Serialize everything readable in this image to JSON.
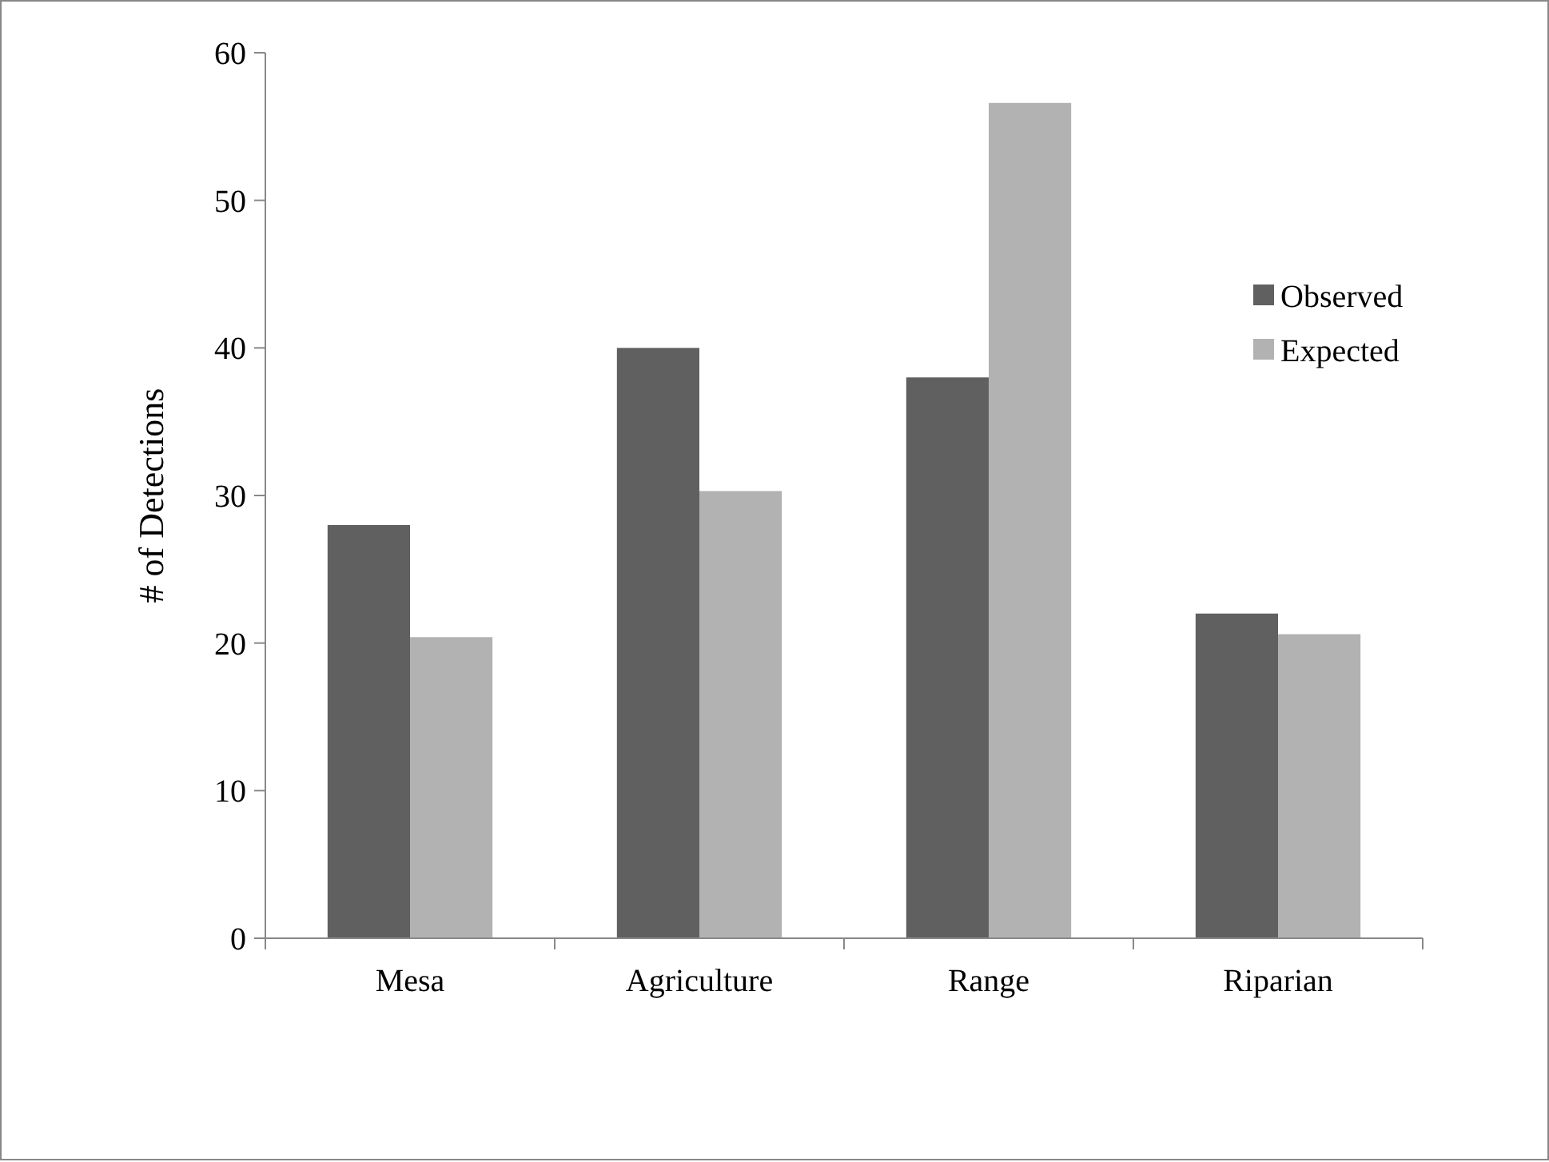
{
  "chart_data": {
    "type": "bar",
    "ylabel": "# of Detections",
    "categories": [
      "Mesa",
      "Agriculture",
      "Range",
      "Riparian"
    ],
    "series": [
      {
        "name": "Observed",
        "color": "#606060",
        "values": [
          28,
          40,
          38,
          22
        ]
      },
      {
        "name": "Expected",
        "color": "#b2b2b2",
        "values": [
          20.4,
          30.3,
          56.6,
          20.6
        ]
      }
    ],
    "ylim": [
      0,
      60
    ],
    "yticks": [
      0,
      10,
      20,
      30,
      40,
      50,
      60
    ],
    "grid": false,
    "legend": "right"
  }
}
